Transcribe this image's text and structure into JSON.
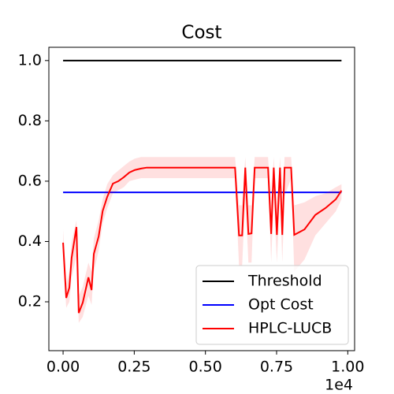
{
  "chart_data": {
    "type": "line",
    "title": "Cost",
    "x_offset_label": "1e4",
    "xlim": [
      -0.05,
      1.024
    ],
    "ylim": [
      0.038,
      1.044
    ],
    "xticks": [
      {
        "value": 0,
        "label": "0.00"
      },
      0.25,
      {
        "value": 0.5,
        "label": "0.50"
      },
      0.75,
      {
        "value": 1,
        "label": "1.00"
      }
    ],
    "yticks": [
      0.2,
      0.4,
      0.6,
      0.8,
      {
        "value": 1,
        "label": "1.0"
      }
    ],
    "grid": false,
    "legend": "lower right",
    "series": [
      {
        "name": "Threshold",
        "color": "#000000",
        "x": [
          0,
          0.978
        ],
        "values": [
          1.0,
          1.0
        ]
      },
      {
        "name": "Opt Cost",
        "color": "#0000ff",
        "x": [
          0,
          0.978
        ],
        "values": [
          0.563,
          0.563
        ]
      },
      {
        "name": "HPLC-LUCB",
        "color": "#ff0000",
        "band_color": "#ff0000",
        "x": [
          0,
          0.011,
          0.022,
          0.03,
          0.047,
          0.055,
          0.069,
          0.089,
          0.1,
          0.108,
          0.125,
          0.139,
          0.155,
          0.175,
          0.194,
          0.213,
          0.233,
          0.252,
          0.274,
          0.294,
          0.604,
          0.618,
          0.629,
          0.64,
          0.651,
          0.662,
          0.673,
          0.72,
          0.731,
          0.74,
          0.751,
          0.762,
          0.77,
          0.778,
          0.801,
          0.812,
          0.848,
          0.886,
          0.922,
          0.958,
          0.978
        ],
        "values": [
          0.396,
          0.213,
          0.247,
          0.346,
          0.448,
          0.163,
          0.197,
          0.281,
          0.239,
          0.359,
          0.417,
          0.501,
          0.548,
          0.592,
          0.6,
          0.613,
          0.629,
          0.637,
          0.642,
          0.645,
          0.645,
          0.42,
          0.42,
          0.645,
          0.425,
          0.427,
          0.645,
          0.645,
          0.425,
          0.645,
          0.422,
          0.645,
          0.422,
          0.645,
          0.645,
          0.422,
          0.44,
          0.488,
          0.511,
          0.54,
          0.569
        ],
        "band_lower": [
          0.35,
          0.18,
          0.2,
          0.28,
          0.35,
          0.13,
          0.15,
          0.22,
          0.19,
          0.3,
          0.37,
          0.46,
          0.51,
          0.56,
          0.57,
          0.58,
          0.6,
          0.605,
          0.61,
          0.61,
          0.61,
          0.32,
          0.32,
          0.55,
          0.33,
          0.33,
          0.61,
          0.61,
          0.33,
          0.55,
          0.33,
          0.55,
          0.33,
          0.55,
          0.61,
          0.3,
          0.34,
          0.42,
          0.46,
          0.5,
          0.54
        ],
        "band_upper": [
          0.44,
          0.26,
          0.3,
          0.4,
          0.47,
          0.22,
          0.25,
          0.33,
          0.3,
          0.41,
          0.47,
          0.54,
          0.59,
          0.62,
          0.635,
          0.65,
          0.665,
          0.675,
          0.68,
          0.68,
          0.68,
          0.52,
          0.52,
          0.68,
          0.52,
          0.52,
          0.68,
          0.68,
          0.52,
          0.68,
          0.52,
          0.68,
          0.52,
          0.68,
          0.68,
          0.52,
          0.53,
          0.55,
          0.56,
          0.58,
          0.59
        ]
      }
    ]
  }
}
